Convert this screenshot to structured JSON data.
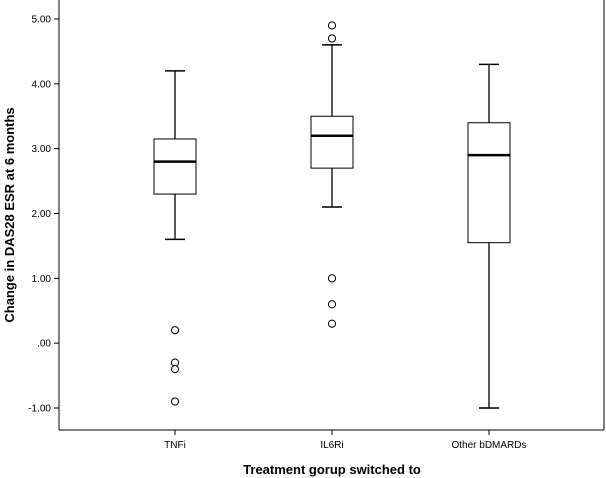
{
  "chart_data": {
    "type": "box",
    "xlabel": "Treatment gorup switched to",
    "ylabel": "Change in DAS28 ESR at 6 months",
    "ylim": [
      -1.35,
      5.2
    ],
    "yticks": [
      -1.0,
      0.0,
      1.0,
      2.0,
      3.0,
      4.0,
      5.0
    ],
    "ytick_labels": [
      "-1.00",
      ".00",
      "1.00",
      "2.00",
      "3.00",
      "4.00",
      "5.00"
    ],
    "categories": [
      "TNFi",
      "IL6Ri",
      "Other bDMARDs"
    ],
    "boxes": [
      {
        "category": "TNFi",
        "whisker_low": 1.6,
        "q1": 2.3,
        "median": 2.8,
        "q3": 3.15,
        "whisker_high": 4.2,
        "outliers": [
          0.2,
          -0.3,
          -0.4,
          -0.9
        ]
      },
      {
        "category": "IL6Ri",
        "whisker_low": 2.1,
        "q1": 2.7,
        "median": 3.2,
        "q3": 3.5,
        "whisker_high": 4.6,
        "outliers": [
          4.9,
          4.7,
          1.0,
          0.6,
          0.3
        ]
      },
      {
        "category": "Other bDMARDs",
        "whisker_low": -1.0,
        "q1": 1.55,
        "median": 2.9,
        "q3": 3.4,
        "whisker_high": 4.3,
        "outliers": []
      }
    ],
    "grid": false,
    "legend": "none"
  }
}
